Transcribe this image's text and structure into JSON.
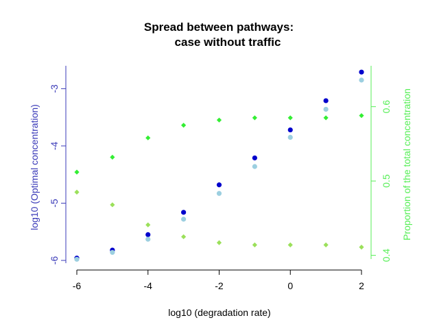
{
  "chart_data": {
    "type": "scatter",
    "title_lines": [
      "Spread between pathways:",
      "case without traffic"
    ],
    "xlabel": "log10 (degradation rate)",
    "ylabel_left": "log10 (Optimal concentration)",
    "ylabel_right": "Proportion of the total concentration",
    "x_ticks": [
      "-6",
      "-4",
      "-2",
      "0",
      "2"
    ],
    "y_left_ticks": [
      "-6",
      "-5",
      "-4",
      "-3"
    ],
    "y_right_ticks": [
      "0.4",
      "0.5",
      "0.6"
    ],
    "xlim": [
      -6,
      2
    ],
    "ylim_left": [
      -6.0,
      -2.6
    ],
    "ylim_right": [
      0.395,
      0.655
    ],
    "colors": {
      "left_axis": "#3a3ab8",
      "right_axis": "#55ee55",
      "series_dark_blue": "#0000cc",
      "series_light_blue": "#9ccfe0",
      "series_dark_green": "#33ee33",
      "series_light_green": "#9be05a"
    },
    "x": [
      -6,
      -5,
      -4,
      -3,
      -2,
      -1,
      0,
      1,
      2
    ],
    "series": [
      {
        "axis": "left",
        "color": "series_dark_blue",
        "values": [
          -5.96,
          -5.82,
          -5.55,
          -5.16,
          -4.68,
          -4.21,
          -3.72,
          -3.21,
          -2.71
        ]
      },
      {
        "axis": "left",
        "color": "series_light_blue",
        "values": [
          -5.98,
          -5.86,
          -5.63,
          -5.28,
          -4.83,
          -4.36,
          -3.85,
          -3.36,
          -2.85
        ]
      },
      {
        "axis": "right",
        "color": "series_dark_green",
        "values": [
          0.512,
          0.532,
          0.558,
          0.575,
          0.582,
          0.585,
          0.585,
          0.585,
          0.588
        ]
      },
      {
        "axis": "right",
        "color": "series_light_green",
        "values": [
          0.485,
          0.468,
          0.441,
          0.425,
          0.417,
          0.414,
          0.414,
          0.414,
          0.411
        ]
      }
    ]
  }
}
